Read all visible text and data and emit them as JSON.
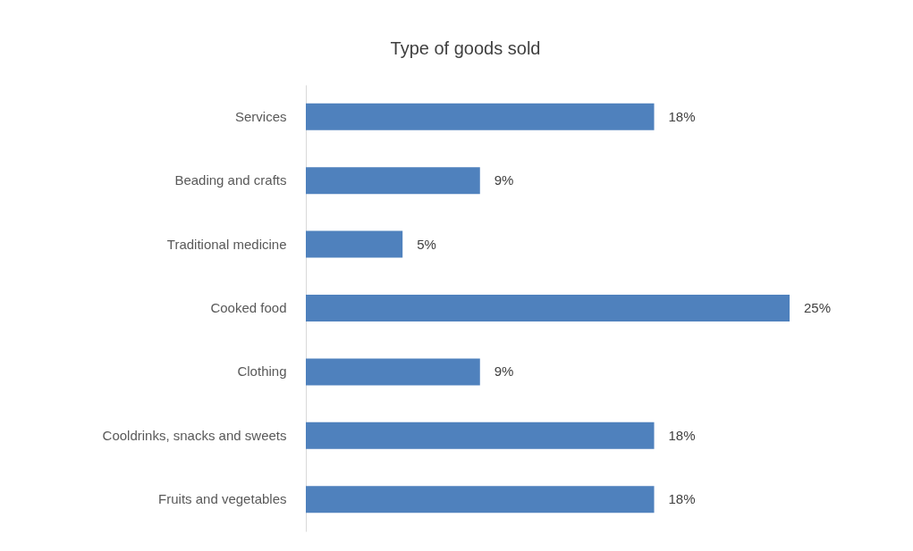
{
  "chart_data": {
    "type": "bar",
    "orientation": "horizontal",
    "title": "Type of goods sold",
    "categories": [
      "Services",
      "Beading and crafts",
      "Traditional medicine",
      "Cooked food",
      "Clothing",
      "Cooldrinks, snacks and sweets",
      "Fruits and vegetables"
    ],
    "values": [
      18,
      9,
      5,
      25,
      9,
      18,
      18
    ],
    "value_labels": [
      "18%",
      "9%",
      "5%",
      "25%",
      "9%",
      "18%",
      "18%"
    ],
    "color": "#4f81bd",
    "grid": false,
    "tick_labels": "y"
  }
}
